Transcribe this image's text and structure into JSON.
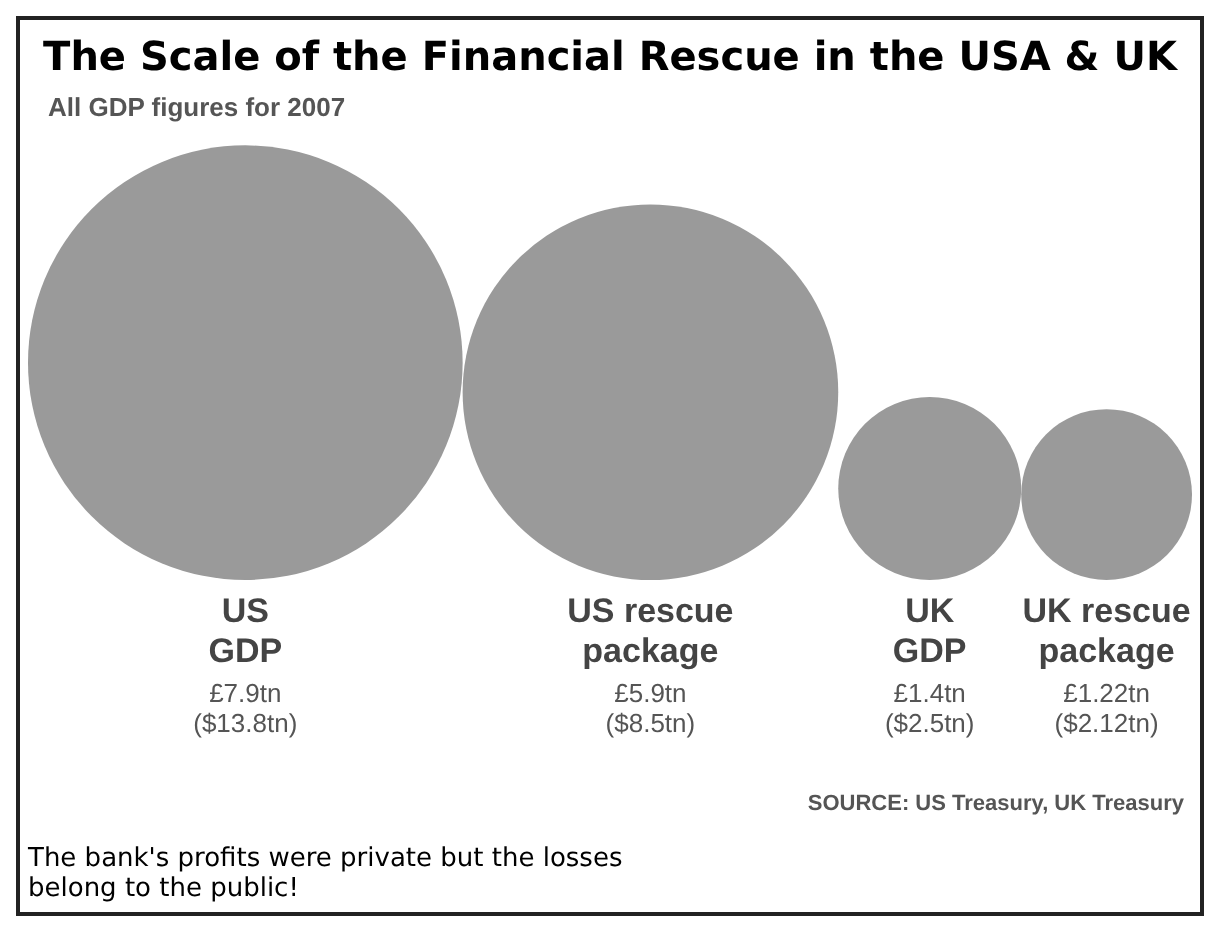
{
  "chart_data": {
    "type": "other",
    "title": "The Scale of the Financial Rescue in the USA & UK",
    "subtitle": "All GDP figures for 2007",
    "categories": [
      "US\nGDP",
      "US rescue\npackage",
      "UK\nGDP",
      "UK rescue\npackage"
    ],
    "values": [
      7.9,
      5.9,
      1.4,
      1.22
    ],
    "value_labels": [
      "£7.9tn\n($13.8tn)",
      "£5.9tn\n($8.5tn)",
      "£1.4tn\n($2.5tn)",
      "£1.22tn\n($2.12tn)"
    ],
    "color": "#9a9a9a",
    "annotations": [
      "SOURCE: US Treasury, UK Treasury",
      "The bank's profits were private but the losses belong to the public!"
    ]
  }
}
